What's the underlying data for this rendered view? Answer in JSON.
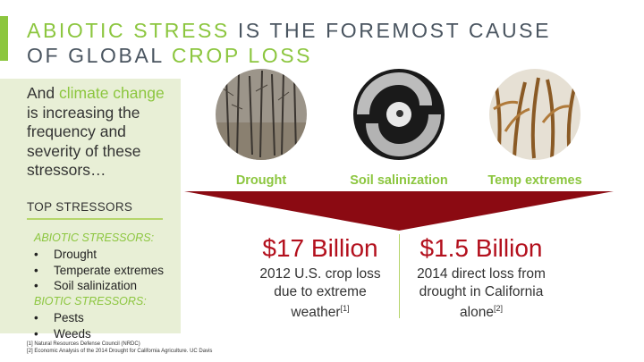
{
  "title": {
    "line1_highlight": "ABIOTIC STRESS",
    "line1_rest": " IS THE FOREMOST CAUSE",
    "line2_lead": "OF GLOBAL ",
    "line2_highlight": "CROP LOSS"
  },
  "intro": {
    "lead": "And ",
    "highlight": "climate change",
    "rest": " is increasing the frequency and severity of these stressors…"
  },
  "stressors": {
    "heading": "TOP STRESSORS",
    "abiotic_label": "ABIOTIC STRESSORS:",
    "abiotic": [
      "Drought",
      "Temperate extremes",
      "Soil salinization"
    ],
    "biotic_label": "BIOTIC STRESSORS:",
    "biotic": [
      "Pests",
      "Weeds"
    ]
  },
  "images": [
    {
      "caption": "Drought",
      "icon": "dead-forest-image"
    },
    {
      "caption": "Soil salinization",
      "icon": "hurricane-image"
    },
    {
      "caption": "Temp extremes",
      "icon": "dried-corn-image"
    }
  ],
  "stats": [
    {
      "value": "$17 Billion",
      "desc_line1": "2012 U.S. crop loss",
      "desc_line2": "due to extreme",
      "desc_line3": "weather",
      "ref": "[1]"
    },
    {
      "value": "$1.5 Billion",
      "desc_line1": "2014 direct loss from",
      "desc_line2": "drought in California",
      "desc_line3": "alone",
      "ref": "[2]"
    }
  ],
  "references": [
    "[1] Natural Resources Defense Council (NRDC)",
    "[2] Economic Analysis of the 2014 Drought for California Agriculture. UC Davis"
  ],
  "colors": {
    "accent": "#8cc63f",
    "funnel": "#8b0a12",
    "stat": "#b3101d",
    "panel": "#e8efd6"
  }
}
